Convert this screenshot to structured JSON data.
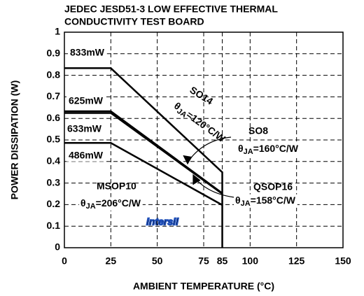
{
  "chart_data": {
    "type": "line",
    "title": [
      "JEDEC JESD51-3 LOW EFFECTIVE THERMAL",
      "CONDUCTIVITY TEST BOARD"
    ],
    "xlabel": "AMBIENT TEMPERATURE (°C)",
    "ylabel": "POWER DISSIPATION (W)",
    "xlim": [
      0,
      150
    ],
    "xticks": [
      0,
      25,
      50,
      75,
      85,
      100,
      125,
      150
    ],
    "ylim": [
      0,
      1
    ],
    "yticks": [
      0,
      0.1,
      0.2,
      0.3,
      0.4,
      0.5,
      0.6,
      0.7,
      0.8,
      0.9,
      1
    ],
    "grid": true,
    "watermark": "intersil",
    "series": [
      {
        "name": "SO14",
        "color": "#000000",
        "x": [
          0,
          25,
          85,
          85
        ],
        "values": [
          0.833,
          0.833,
          0.35,
          0
        ],
        "power_label": "833mW",
        "theta": {
          "symbol": "θ",
          "subscript": "JA",
          "text": "=120°C/W"
        }
      },
      {
        "name": "SO8",
        "color": "#000000",
        "x": [
          0,
          25,
          85
        ],
        "values": [
          0.625,
          0.625,
          0.25
        ],
        "power_label": "625mW",
        "theta": {
          "symbol": "θ",
          "subscript": "JA",
          "text": "=160°C/W"
        }
      },
      {
        "name": "QSOP16",
        "color": "#000000",
        "x": [
          0,
          25,
          85
        ],
        "values": [
          0.633,
          0.633,
          0.253
        ],
        "power_label": "633mW",
        "theta": {
          "symbol": "θ",
          "subscript": "JA",
          "text": "=158°C/W"
        }
      },
      {
        "name": "MSOP10",
        "color": "#000000",
        "x": [
          0,
          25,
          85
        ],
        "values": [
          0.486,
          0.486,
          0.198
        ],
        "power_label": "486mW",
        "theta": {
          "symbol": "θ",
          "subscript": "JA",
          "text": "=206°C/W"
        }
      }
    ]
  }
}
